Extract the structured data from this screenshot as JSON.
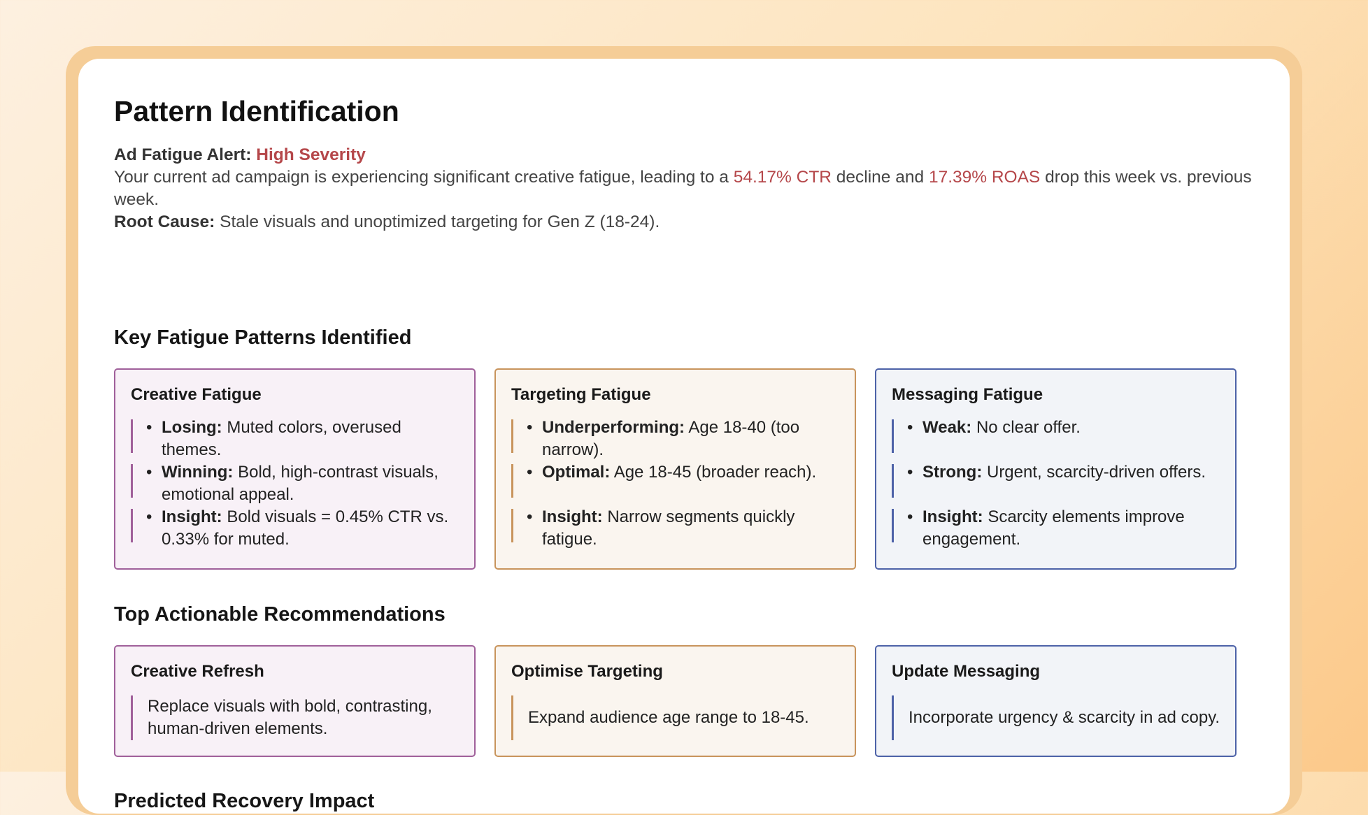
{
  "page": {
    "title": "Pattern Identification"
  },
  "alert": {
    "label": "Ad Fatigue Alert:",
    "severity": "High Severity",
    "text_before": "Your current ad campaign is experiencing significant creative fatigue, leading to a",
    "ctr": "54.17% CTR",
    "text_middle": "decline and",
    "roas": "17.39% ROAS",
    "text_after": "drop this week vs. previous week.",
    "root_label": "Root Cause:",
    "root_text": "Stale visuals and unoptimized targeting for Gen Z (18-24)."
  },
  "patterns": {
    "heading": "Key Fatigue Patterns Identified",
    "cards": [
      {
        "title": "Creative Fatigue",
        "items": [
          {
            "label": "Losing:",
            "text": "Muted colors, overused themes."
          },
          {
            "label": "Winning:",
            "text": "Bold, high-contrast visuals, emotional appeal."
          },
          {
            "label": "Insight:",
            "text": "Bold visuals = 0.45% CTR vs. 0.33% for muted."
          }
        ]
      },
      {
        "title": "Targeting Fatigue",
        "items": [
          {
            "label": "Underperforming:",
            "text": "Age 18-40 (too narrow)."
          },
          {
            "label": "Optimal:",
            "text": "Age 18-45 (broader reach)."
          },
          {
            "label": "Insight:",
            "text": "Narrow segments quickly fatigue."
          }
        ]
      },
      {
        "title": "Messaging Fatigue",
        "items": [
          {
            "label": "Weak:",
            "text": "No clear offer."
          },
          {
            "label": "Strong:",
            "text": "Urgent, scarcity-driven offers."
          },
          {
            "label": "Insight:",
            "text": "Scarcity elements improve engagement."
          }
        ]
      }
    ]
  },
  "recommendations": {
    "heading": "Top Actionable Recommendations",
    "cards": [
      {
        "title": "Creative Refresh",
        "text": "Replace visuals with bold, contrasting, human-driven elements."
      },
      {
        "title": "Optimise Targeting",
        "text": "Expand audience age range to 18-45."
      },
      {
        "title": "Update Messaging",
        "text": "Incorporate urgency & scarcity in ad copy."
      }
    ]
  },
  "impact": {
    "heading": "Predicted Recovery Impact"
  },
  "colors": {
    "accent_red": "#b5474a",
    "purple": "#a0609a",
    "orange": "#c8945c",
    "blue": "#4d62a8"
  }
}
